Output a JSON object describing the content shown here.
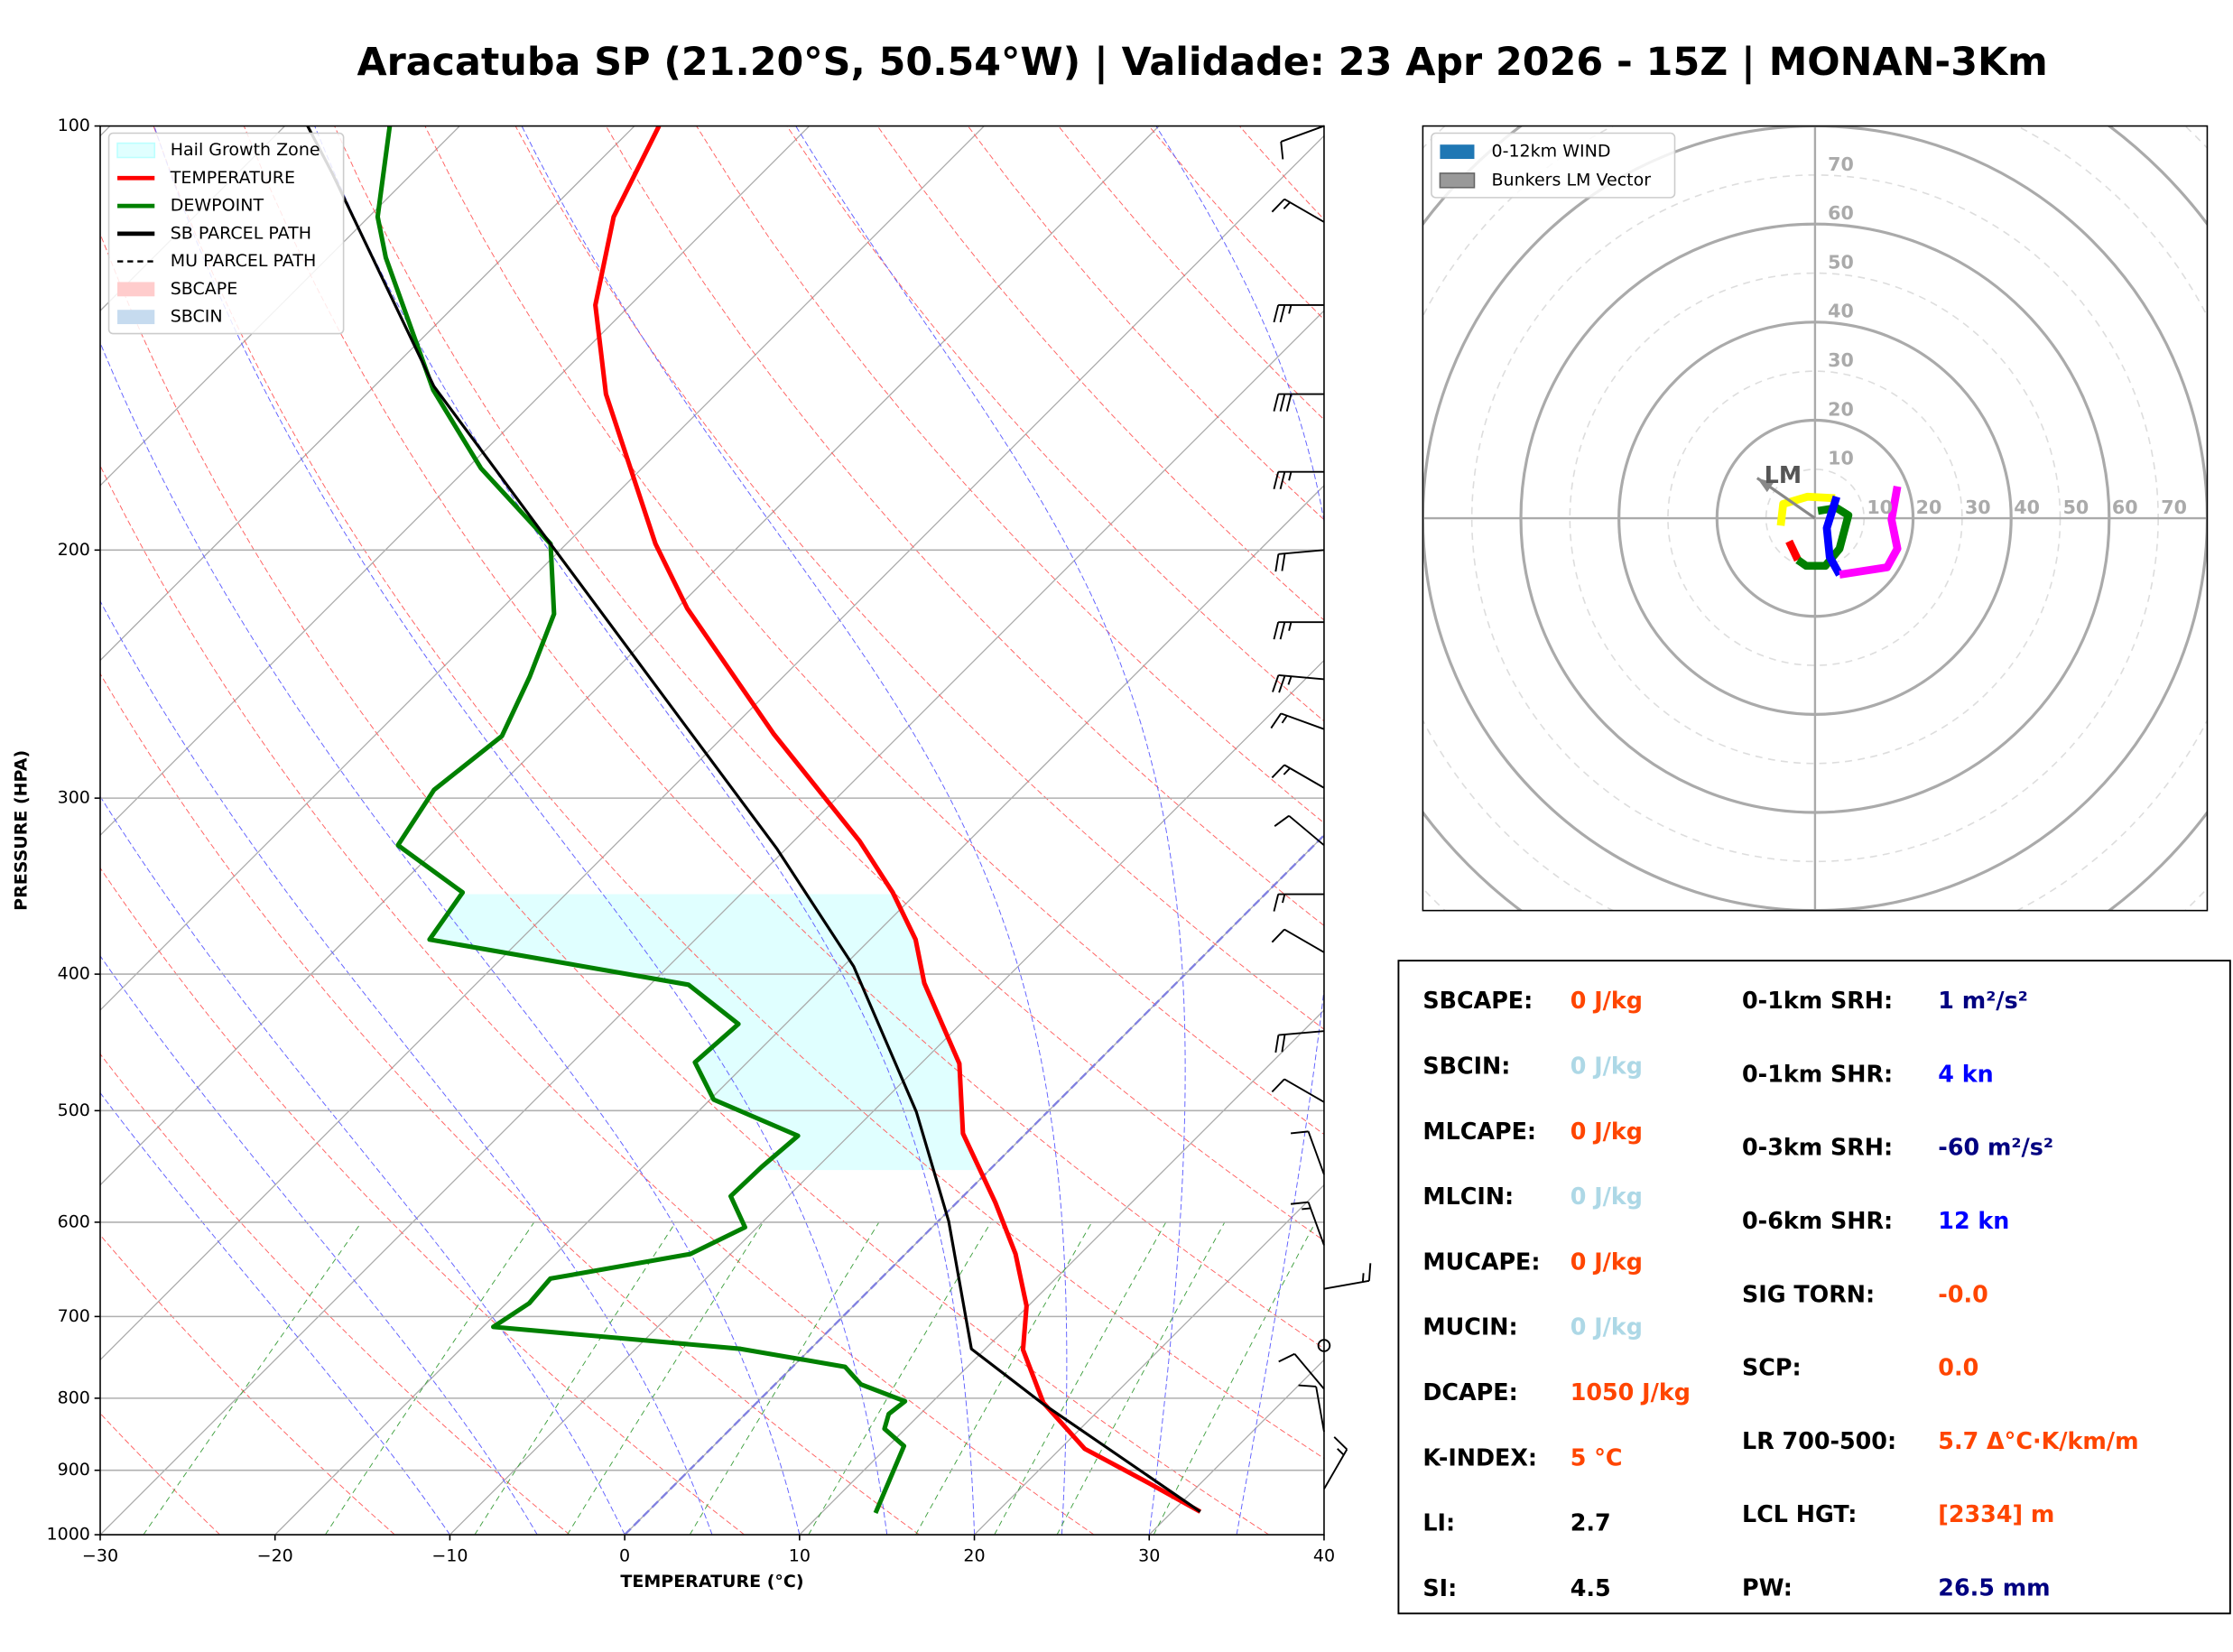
{
  "title": "Aracatuba SP (21.20°S, 50.54°W) | Validade: 23 Apr 2026 - 15Z | MONAN-3Km",
  "chart_data": [
    {
      "type": "skewt",
      "xlabel": "TEMPERATURE (°C)",
      "ylabel": "PRESSURE (HPA)",
      "xlim": [
        -30,
        40
      ],
      "ylim": [
        1000,
        100
      ],
      "log_y": true,
      "grid": true,
      "legend": "upper left",
      "xticks": [
        {
          "value": -30,
          "label": "−30"
        },
        {
          "value": -20,
          "label": "−20"
        },
        {
          "value": -10,
          "label": "−10"
        },
        0,
        10,
        20,
        30,
        40
      ],
      "yticks": [
        100,
        200,
        300,
        400,
        500,
        600,
        700,
        800,
        900,
        1000
      ],
      "hgz": {
        "name": "Hail Growth Zone",
        "color": "#e0ffff",
        "p": [
          551,
          351
        ]
      },
      "series": [
        {
          "name": "TEMPERATURE",
          "color": "#ff0000",
          "p": [
            963,
            917,
            869,
            806,
            739,
            688,
            632,
            581,
            519,
            463,
            406,
            378,
            350,
            322,
            270,
            220,
            198,
            155,
            134,
            116,
            100
          ],
          "values": [
            31.6,
            26.8,
            21.4,
            16.4,
            12.2,
            9.9,
            6.3,
            2.2,
            -3.6,
            -7.8,
            -14.4,
            -17.4,
            -21.4,
            -26.2,
            -37.3,
            -49.4,
            -54.9,
            -66.3,
            -72,
            -76,
            -78.6
          ]
        },
        {
          "name": "DEWPOINT",
          "color": "#008000",
          "p": [
            965,
            865,
            841,
            821,
            804,
            782,
            760,
            738,
            712,
            685,
            658,
            632,
            605,
            575,
            548,
            521,
            491,
            462,
            434,
            407,
            378,
            350,
            324,
            296,
            271,
            246,
            222,
            198,
            175,
            154,
            124,
            116,
            100
          ],
          "values": [
            13.1,
            10.9,
            8.8,
            8.2,
            8.4,
            4.9,
            3.0,
            -4.0,
            -19.4,
            -18.7,
            -18.9,
            -12.3,
            -10.7,
            -13.3,
            -13.2,
            -12.9,
            -19.8,
            -23,
            -22.7,
            -27.8,
            -45.2,
            -46,
            -52.4,
            -53.5,
            -52.7,
            -54.5,
            -56.7,
            -60.9,
            -69.2,
            -76.4,
            -86.7,
            -89.5,
            -94
          ]
        },
        {
          "name": "SB PARCEL PATH",
          "color": "#000000",
          "p": [
            963,
            808,
            738,
            599,
            501,
            395,
            326,
            270,
            198,
            153,
            108,
            100
          ],
          "values": [
            31.6,
            16.5,
            9.2,
            0.6,
            -7.5,
            -19.4,
            -30.5,
            -42,
            -60.9,
            -76.6,
            -94.6,
            -98.7
          ]
        }
      ],
      "other_legend": [
        {
          "name": "MU PARCEL PATH",
          "color": "#000000",
          "style": "dashed"
        },
        {
          "name": "SBCAPE",
          "color": "#ffcccc",
          "style": "patch"
        },
        {
          "name": "SBCIN",
          "color": "#c6dbef",
          "style": "patch"
        }
      ],
      "barbs": {
        "p": [
          100,
          117,
          134,
          155,
          176,
          200,
          225,
          247,
          268,
          295,
          324,
          351,
          386,
          439,
          493,
          555,
          623,
          669,
          734,
          788,
          845,
          928
        ],
        "speed": [
          10,
          15,
          25,
          30,
          25,
          20,
          25,
          25,
          15,
          15,
          10,
          15,
          10,
          20,
          10,
          10,
          15,
          15,
          0,
          10,
          10,
          15
        ],
        "direction": [
          250,
          300,
          270,
          270,
          270,
          265,
          270,
          275,
          290,
          300,
          310,
          270,
          300,
          265,
          300,
          340,
          340,
          80,
          0,
          320,
          350,
          30
        ]
      }
    },
    {
      "type": "hodograph",
      "rlim": [
        0,
        80
      ],
      "ring_labels": [
        10,
        20,
        30,
        40,
        50,
        60,
        70
      ],
      "legend": [
        {
          "name": "0-12km WIND",
          "color": "#1f77b4"
        },
        {
          "name": "Bunkers LM Vector",
          "color": "#999999"
        }
      ],
      "segments": [
        {
          "color": "#ff0000",
          "u": [
            -5.3,
            -3.5
          ],
          "v": [
            -4.7,
            -8.5
          ]
        },
        {
          "color": "#008000",
          "u": [
            -3.5,
            -1.8,
            2.1,
            5,
            6.8,
            4.4,
            0.6
          ],
          "v": [
            -8.5,
            -9.7,
            -9.7,
            -6.2,
            0.6,
            2.1,
            1.5
          ]
        },
        {
          "color": "#ffff00",
          "u": [
            -7,
            -6.5,
            -1.5,
            4.1
          ],
          "v": [
            -1.5,
            2.9,
            4.4,
            4.1
          ]
        },
        {
          "color": "#0000ff",
          "u": [
            4.4,
            2.4,
            3,
            5
          ],
          "v": [
            4.4,
            -2,
            -7.9,
            -11.5
          ]
        },
        {
          "color": "#ff00ff",
          "u": [
            5,
            14.7,
            16.8,
            15.6,
            16.8
          ],
          "v": [
            -11.5,
            -10,
            -6.2,
            -0.3,
            6.5
          ]
        }
      ],
      "lm": {
        "label": "LM",
        "u": -11.8,
        "v": 8.2
      }
    }
  ],
  "indices": {
    "left": [
      {
        "label": "SBCAPE:",
        "value": "0 J/kg",
        "color": "#ff4500"
      },
      {
        "label": "SBCIN:",
        "value": "0 J/kg",
        "color": "#add8e6"
      },
      {
        "label": "MLCAPE:",
        "value": "0 J/kg",
        "color": "#ff4500"
      },
      {
        "label": "MLCIN:",
        "value": "0 J/kg",
        "color": "#add8e6"
      },
      {
        "label": "MUCAPE:",
        "value": "0 J/kg",
        "color": "#ff4500"
      },
      {
        "label": "MUCIN:",
        "value": "0 J/kg",
        "color": "#add8e6"
      },
      {
        "label": "DCAPE:",
        "value": "1050 J/kg",
        "color": "#ff4500"
      },
      {
        "label": "K-INDEX:",
        "value": "5 °C",
        "color": "#ff4500"
      },
      {
        "label": "LI:",
        "value": "2.7",
        "color": "#000000"
      },
      {
        "label": "SI:",
        "value": "4.5",
        "color": "#000000"
      }
    ],
    "right": [
      {
        "label": "0-1km SRH:",
        "value": "1 m²/s²",
        "color": "#000080"
      },
      {
        "label": "0-1km SHR:",
        "value": "4 kn",
        "color": "#0000ff"
      },
      {
        "label": "0-3km SRH:",
        "value": "-60 m²/s²",
        "color": "#000080"
      },
      {
        "label": "0-6km SHR:",
        "value": "12 kn",
        "color": "#0000ff"
      },
      {
        "label": "SIG TORN:",
        "value": "-0.0",
        "color": "#ff4500"
      },
      {
        "label": "SCP:",
        "value": "0.0",
        "color": "#ff4500"
      },
      {
        "label": "LR 700-500:",
        "value": "5.7 Δ°C·K/km/m",
        "color": "#ff4500"
      },
      {
        "label": "LCL HGT:",
        "value": "[2334] m",
        "color": "#ff4500"
      },
      {
        "label": "PW:",
        "value": "26.5 mm",
        "color": "#000080"
      }
    ]
  }
}
